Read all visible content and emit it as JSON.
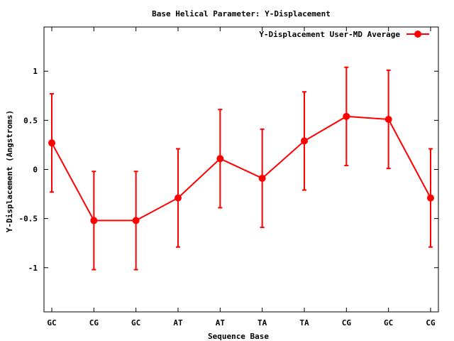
{
  "chart_data": {
    "type": "line",
    "title": "Base  Helical Parameter: Y-Displacement",
    "xlabel": "Sequence Base",
    "ylabel": "Y-Displacement (Angstroms)",
    "categories": [
      "GC",
      "CG",
      "GC",
      "AT",
      "AT",
      "TA",
      "TA",
      "CG",
      "GC",
      "CG"
    ],
    "ylim": [
      -1.45,
      1.45
    ],
    "yticks": [
      -1,
      -0.5,
      0,
      0.5,
      1
    ],
    "ytick_labels": [
      "-1",
      "-0.5",
      "0",
      "0.5",
      "1"
    ],
    "grid": false,
    "legend_position": "top-right",
    "series": [
      {
        "name": "Y-Displacement User-MD Average",
        "color": "#ff0000",
        "values": [
          0.27,
          -0.52,
          -0.52,
          -0.29,
          0.11,
          -0.09,
          0.29,
          0.54,
          0.51,
          -0.29
        ],
        "error": [
          0.5,
          0.5,
          0.5,
          0.5,
          0.5,
          0.5,
          0.5,
          0.5,
          0.5,
          0.5
        ]
      }
    ]
  }
}
